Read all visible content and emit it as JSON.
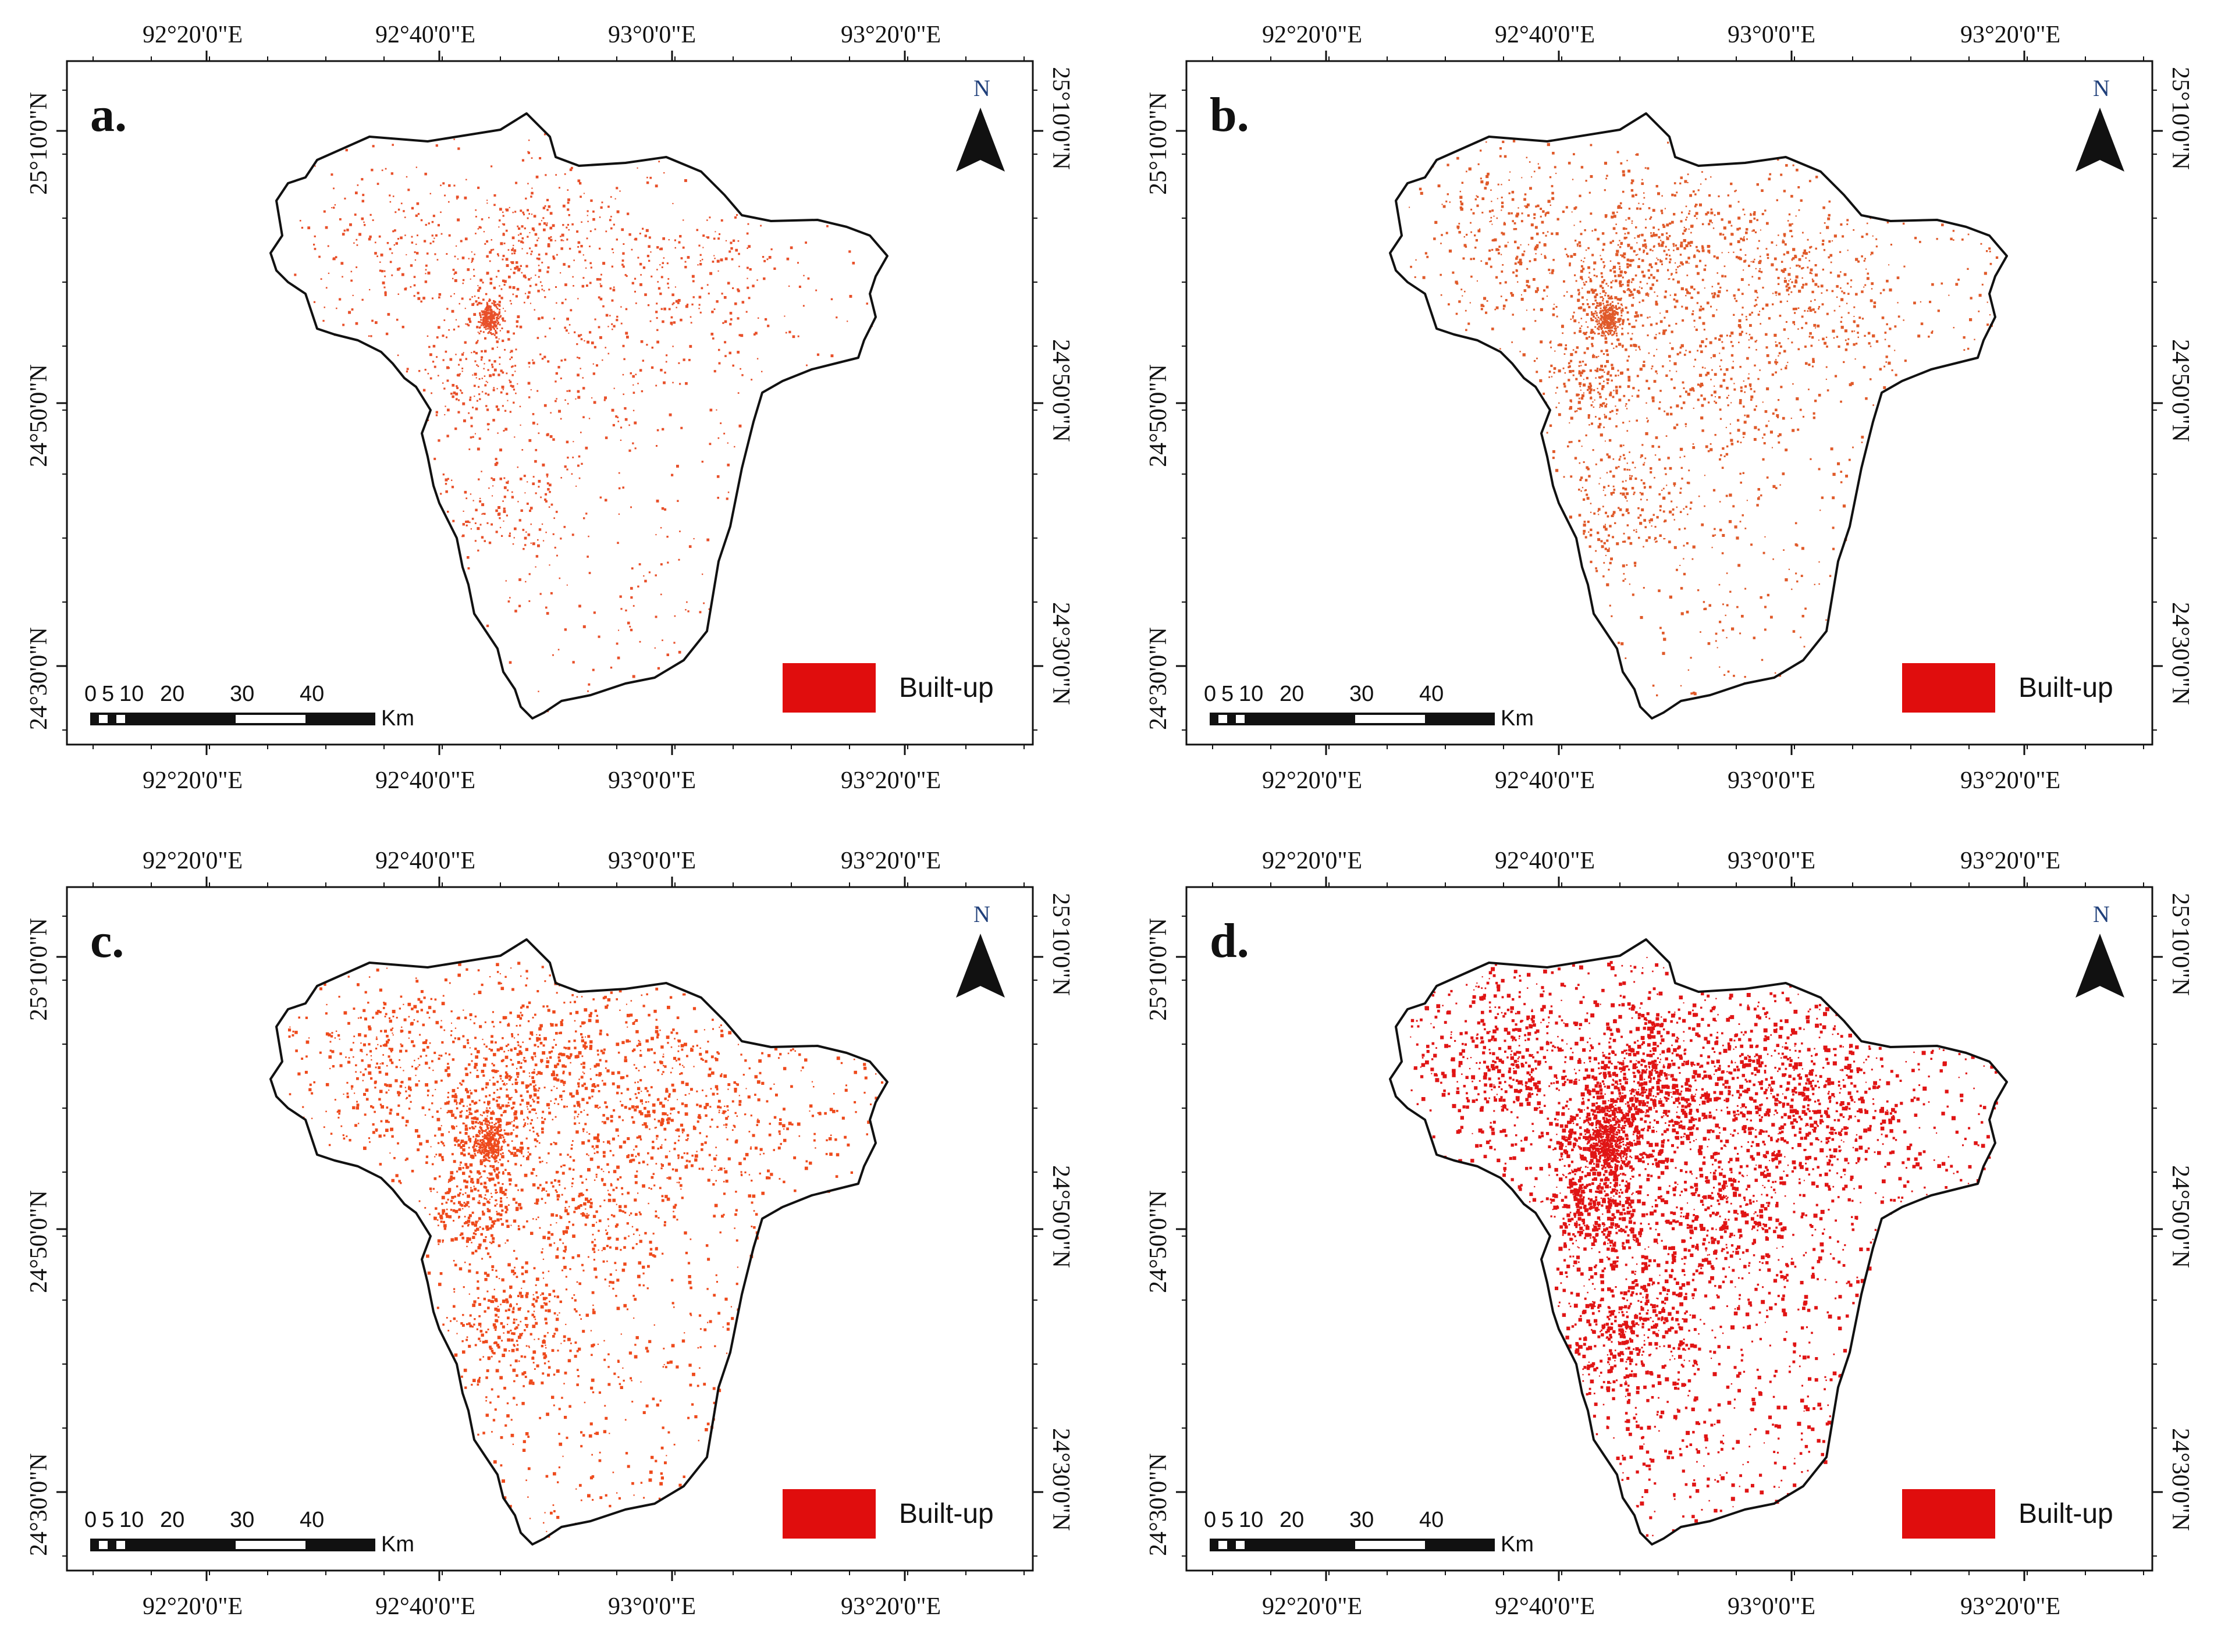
{
  "figure": {
    "panels": [
      {
        "letter": "a.",
        "density": 1.0,
        "dot_color": "#e8502a",
        "cluster_scale": 1.0
      },
      {
        "letter": "b.",
        "density": 1.6,
        "dot_color": "#e05a2a",
        "cluster_scale": 1.1
      },
      {
        "letter": "c.",
        "density": 2.0,
        "dot_color": "#ee4a1c",
        "cluster_scale": 1.3
      },
      {
        "letter": "d.",
        "density": 3.0,
        "dot_color": "#e01515",
        "cluster_scale": 1.7
      }
    ],
    "lon_labels": [
      "92°20'0\"E",
      "92°40'0\"E",
      "93°0'0\"E",
      "93°20'0\"E"
    ],
    "lat_labels": [
      "25°10'0\"N",
      "24°50'0\"N",
      "24°30'0\"N"
    ],
    "north_label": "N",
    "scale": {
      "ticks": [
        "0",
        "5",
        "10",
        "20",
        "30",
        "40"
      ],
      "unit": "Km"
    },
    "legend": {
      "label": "Built-up",
      "swatch_color": "#e00d0d"
    },
    "boundary_color": "#111111",
    "frame_color": "#111111"
  }
}
